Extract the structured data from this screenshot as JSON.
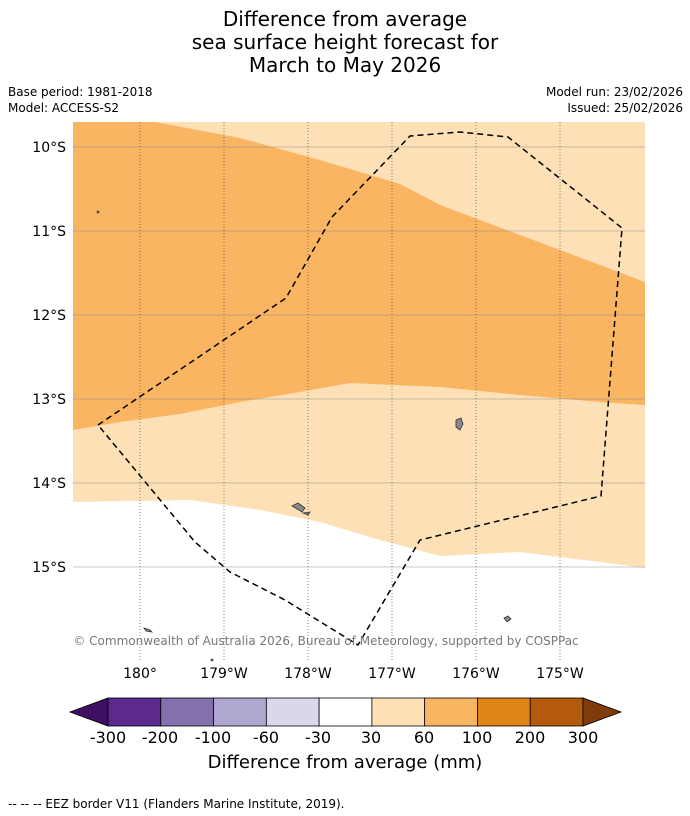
{
  "title": {
    "line1": "Difference from average",
    "line2": "sea surface height forecast for",
    "line3": "March to May 2026"
  },
  "meta": {
    "base_period": "Base period: 1981-2018",
    "model": "Model: ACCESS-S2",
    "model_run": "Model run: 23/02/2026",
    "issued": "Issued: 25/02/2026"
  },
  "map": {
    "lat_labels": [
      "10°S",
      "11°S",
      "12°S",
      "13°S",
      "14°S",
      "15°S"
    ],
    "lon_labels": [
      "180°",
      "179°W",
      "178°W",
      "177°W",
      "176°W",
      "175°W"
    ],
    "copyright": "© Commonwealth of Australia 2026, Bureau of Meteorology, supported by COSPPac"
  },
  "colorbar": {
    "labels": [
      "-300",
      "-200",
      "-100",
      "-60",
      "-30",
      "30",
      "60",
      "100",
      "200",
      "300"
    ],
    "colors": [
      "#3f0f63",
      "#5b2a8c",
      "#8271ad",
      "#b1a8d2",
      "#d8d8ea",
      "#ffffff",
      "#fde0b6",
      "#f9b562",
      "#e08418",
      "#b45a0c",
      "#7f3c0a"
    ],
    "title": "Difference from average (mm)"
  },
  "fills": {
    "light": "#fde0b6",
    "medium": "#f9b562",
    "land": "#888888"
  },
  "footer": "--  --  -- EEZ border V11 (Flanders Marine Institute, 2019)."
}
